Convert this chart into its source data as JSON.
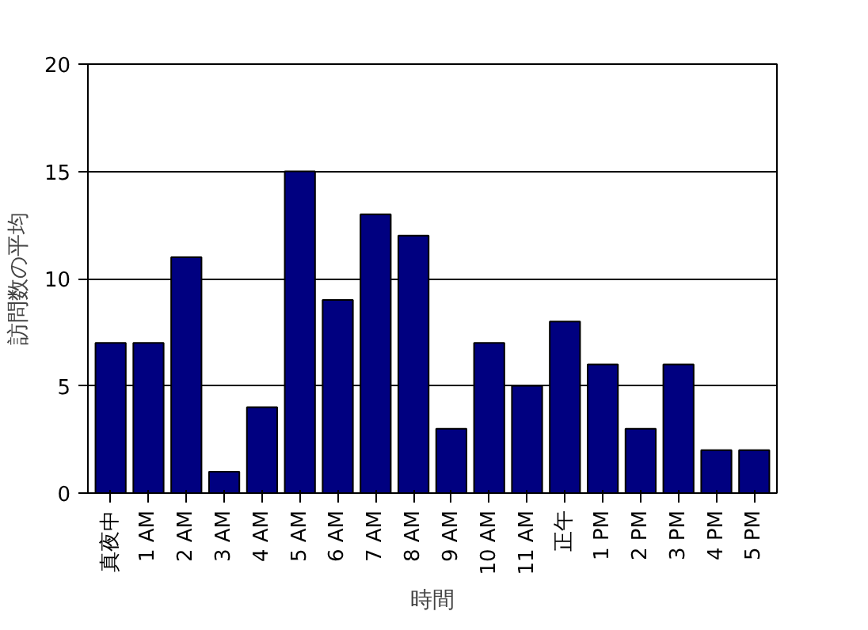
{
  "chart_data": {
    "type": "bar",
    "xlabel": "時間",
    "ylabel": "訪問数の平均",
    "categories": [
      "真夜中",
      "1 AM",
      "2 AM",
      "3 AM",
      "4 AM",
      "5 AM",
      "6 AM",
      "7 AM",
      "8 AM",
      "9 AM",
      "10 AM",
      "11 AM",
      "正午",
      "1 PM",
      "2 PM",
      "3 PM",
      "4 PM",
      "5 PM"
    ],
    "values": [
      7,
      7,
      11,
      1,
      4,
      15,
      9,
      13,
      12,
      3,
      7,
      5,
      8,
      6,
      3,
      6,
      2,
      2
    ],
    "color": "#000080",
    "ylim": [
      0,
      20
    ],
    "yticks": [
      0,
      5,
      10,
      15,
      20
    ],
    "grid": "y"
  }
}
